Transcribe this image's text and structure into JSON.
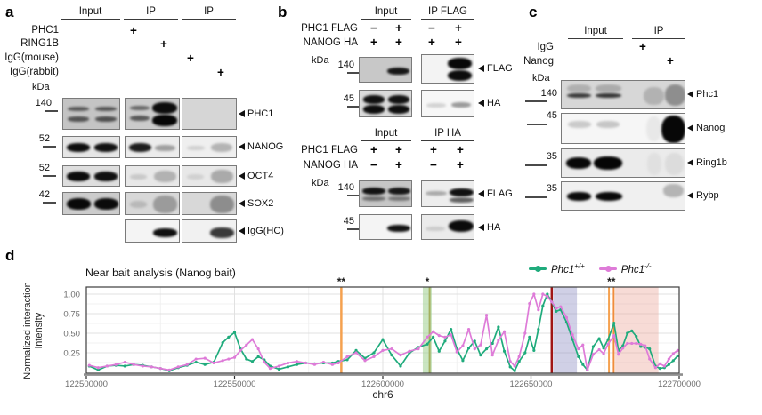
{
  "panel_a": {
    "label": "a",
    "headers": [
      "Input",
      "IP",
      "IP"
    ],
    "antibody_rows": [
      {
        "label": "PHC1",
        "sign": "+"
      },
      {
        "label": "RING1B",
        "sign": "+"
      },
      {
        "label": "IgG(mouse)",
        "sign": "+"
      },
      {
        "label": "IgG(rabbit)",
        "sign": "+"
      }
    ],
    "kda_title": "kDa",
    "blot_rows": [
      {
        "marker": "140",
        "arrow": "PHC1"
      },
      {
        "marker": "52",
        "arrow": "NANOG"
      },
      {
        "marker": "52",
        "arrow": "OCT4"
      },
      {
        "marker": "42",
        "arrow": "SOX2"
      },
      {
        "marker": "",
        "arrow": "IgG(HC)"
      }
    ]
  },
  "panel_b": {
    "label": "b",
    "blocks": [
      {
        "headers": [
          "Input",
          "IP FLAG"
        ],
        "rows": [
          {
            "label": "PHC1 FLAG",
            "signs": [
              "−",
              "+",
              "−",
              "+"
            ]
          },
          {
            "label": "NANOG HA",
            "signs": [
              "+",
              "+",
              "+",
              "+"
            ]
          }
        ],
        "kda_title": "kDa",
        "blots": [
          {
            "marker": "140",
            "arrow": "FLAG"
          },
          {
            "marker": "45",
            "arrow": "HA"
          }
        ]
      },
      {
        "headers": [
          "Input",
          "IP HA"
        ],
        "rows": [
          {
            "label": "PHC1 FLAG",
            "signs": [
              "+",
              "+",
              "+",
              "+"
            ]
          },
          {
            "label": "NANOG HA",
            "signs": [
              "−",
              "+",
              "−",
              "+"
            ]
          }
        ],
        "kda_title": "kDa",
        "blots": [
          {
            "marker": "140",
            "arrow": "FLAG"
          },
          {
            "marker": "45",
            "arrow": "HA"
          }
        ]
      }
    ]
  },
  "panel_c": {
    "label": "c",
    "headers": [
      "Input",
      "IP"
    ],
    "antibody_rows": [
      {
        "label": "IgG",
        "sign": "+"
      },
      {
        "label": "Nanog",
        "sign": "+"
      }
    ],
    "kda_title": "kDa",
    "blot_rows": [
      {
        "marker": "140",
        "arrow": "Phc1"
      },
      {
        "marker": "45",
        "arrow": "Nanog"
      },
      {
        "marker": "35",
        "arrow": "Ring1b"
      },
      {
        "marker": "35",
        "arrow": "Rybp"
      }
    ]
  },
  "panel_d": {
    "label": "d"
  },
  "chart_data": {
    "type": "line",
    "title": "Near bait analysis (Nanog bait)",
    "xlabel": "chr6",
    "ylabel": "Normalized interaction intensity",
    "xlim": [
      122500000,
      122700000
    ],
    "ylim": [
      0,
      1.0
    ],
    "legend_position": "top-right",
    "grid": {
      "x_major": [
        122550000,
        122600000,
        122650000
      ],
      "x_minor": [
        122525000,
        122575000,
        122625000,
        122675000
      ],
      "y_minor": [
        0.125,
        0.375,
        0.625,
        0.875
      ]
    },
    "x_ticks": [
      {
        "x": 122500000,
        "label": "122500000"
      },
      {
        "x": 122550000,
        "label": "122550000"
      },
      {
        "x": 122600000,
        "label": "122600000"
      },
      {
        "x": 122650000,
        "label": "122650000"
      },
      {
        "x": 122700000,
        "label": "122700000"
      }
    ],
    "y_ticks": [
      {
        "v": 0.25,
        "label": "0.25"
      },
      {
        "v": 0.5,
        "label": "0.50"
      },
      {
        "v": 0.75,
        "label": "0.75"
      },
      {
        "v": 1.0,
        "label": "1.00"
      }
    ],
    "annotations": [
      {
        "x": 122586000,
        "label": "**"
      },
      {
        "x": 122615000,
        "label": "*"
      },
      {
        "x": 122677100,
        "label": "**"
      }
    ],
    "vlines": [
      {
        "x": 122586000,
        "color": "#f5a14f",
        "width": 2.5
      },
      {
        "x": 122615800,
        "color": "#a3b05e",
        "width": 2
      },
      {
        "x": 122657000,
        "color": "#a01515",
        "width": 2.5
      },
      {
        "x": 122676300,
        "color": "#f5a14f",
        "width": 2
      },
      {
        "x": 122677900,
        "color": "#f08c3c",
        "width": 2
      }
    ],
    "regions": [
      {
        "x1": 122613500,
        "x2": 122616500,
        "color": "#9ecf8e",
        "opacity": 0.55
      },
      {
        "x1": 122657500,
        "x2": 122665500,
        "color": "#8f8fc4",
        "opacity": 0.42
      },
      {
        "x1": 122678400,
        "x2": 122693000,
        "color": "#eda99e",
        "opacity": 0.42
      }
    ],
    "x": [
      122501000,
      122504000,
      122507000,
      122510000,
      122513000,
      122516000,
      122519000,
      122522000,
      122525000,
      122528000,
      122531000,
      122534000,
      122537000,
      122540000,
      122543000,
      122546000,
      122548000,
      122550000,
      122552000,
      122554000,
      122556000,
      122558000,
      122560000,
      122562000,
      122565000,
      122568000,
      122571000,
      122574000,
      122577000,
      122580000,
      122583000,
      122585000,
      122588000,
      122591000,
      122594000,
      122597000,
      122600000,
      122603000,
      122606000,
      122609000,
      122612000,
      122615000,
      122617000,
      122619000,
      122621000,
      122623000,
      122625000,
      122627000,
      122629000,
      122631000,
      122633000,
      122635000,
      122637000,
      122639000,
      122641000,
      122643000,
      122644500,
      122646000,
      122648000,
      122649500,
      122651000,
      122652500,
      122654000,
      122655500,
      122657000,
      122658500,
      122660000,
      122662000,
      122664000,
      122666000,
      122667500,
      122669000,
      122671000,
      122673000,
      122674500,
      122676000,
      122678000,
      122679500,
      122681000,
      122682500,
      122684000,
      122685500,
      122687000,
      122688500,
      122690000,
      122692000,
      122693500,
      122695000,
      122696500,
      122698000,
      122699500
    ],
    "series": [
      {
        "name": "Phc1",
        "sup": "+/+",
        "color": "#1fab7c",
        "values": [
          0.08,
          0.03,
          0.08,
          0.09,
          0.08,
          0.1,
          0.09,
          0.07,
          0.05,
          0.02,
          0.06,
          0.09,
          0.13,
          0.1,
          0.13,
          0.38,
          0.45,
          0.51,
          0.3,
          0.17,
          0.14,
          0.2,
          0.16,
          0.08,
          0.04,
          0.07,
          0.1,
          0.12,
          0.11,
          0.12,
          0.12,
          0.14,
          0.16,
          0.28,
          0.18,
          0.25,
          0.42,
          0.22,
          0.08,
          0.25,
          0.32,
          0.36,
          0.45,
          0.27,
          0.4,
          0.55,
          0.3,
          0.15,
          0.31,
          0.4,
          0.22,
          0.3,
          0.37,
          0.58,
          0.27,
          0.07,
          0.02,
          0.14,
          0.25,
          0.45,
          0.28,
          0.55,
          0.85,
          1.0,
          0.9,
          0.78,
          0.8,
          0.64,
          0.42,
          0.2,
          0.1,
          0.03,
          0.33,
          0.43,
          0.31,
          0.42,
          0.63,
          0.28,
          0.34,
          0.5,
          0.53,
          0.46,
          0.33,
          0.32,
          0.3,
          0.08,
          0.05,
          0.06,
          0.1,
          0.15,
          0.21
        ]
      },
      {
        "name": "Phc1",
        "sup": "-/-",
        "color": "#de7bd8",
        "values": [
          0.09,
          0.06,
          0.08,
          0.1,
          0.13,
          0.1,
          0.08,
          0.07,
          0.05,
          0.03,
          0.07,
          0.1,
          0.17,
          0.18,
          0.12,
          0.15,
          0.17,
          0.19,
          0.28,
          0.35,
          0.42,
          0.3,
          0.13,
          0.05,
          0.08,
          0.12,
          0.14,
          0.12,
          0.1,
          0.13,
          0.1,
          0.12,
          0.2,
          0.25,
          0.15,
          0.2,
          0.28,
          0.3,
          0.22,
          0.27,
          0.3,
          0.45,
          0.52,
          0.47,
          0.45,
          0.48,
          0.26,
          0.34,
          0.55,
          0.3,
          0.35,
          0.73,
          0.22,
          0.41,
          0.52,
          0.14,
          0.08,
          0.2,
          0.5,
          0.88,
          1.0,
          0.8,
          1.0,
          0.97,
          0.9,
          0.82,
          0.84,
          0.7,
          0.48,
          0.3,
          0.35,
          0.03,
          0.23,
          0.29,
          0.24,
          0.36,
          0.47,
          0.23,
          0.31,
          0.37,
          0.37,
          0.37,
          0.36,
          0.34,
          0.17,
          0.06,
          0.11,
          0.08,
          0.17,
          0.24,
          0.28
        ]
      }
    ]
  }
}
